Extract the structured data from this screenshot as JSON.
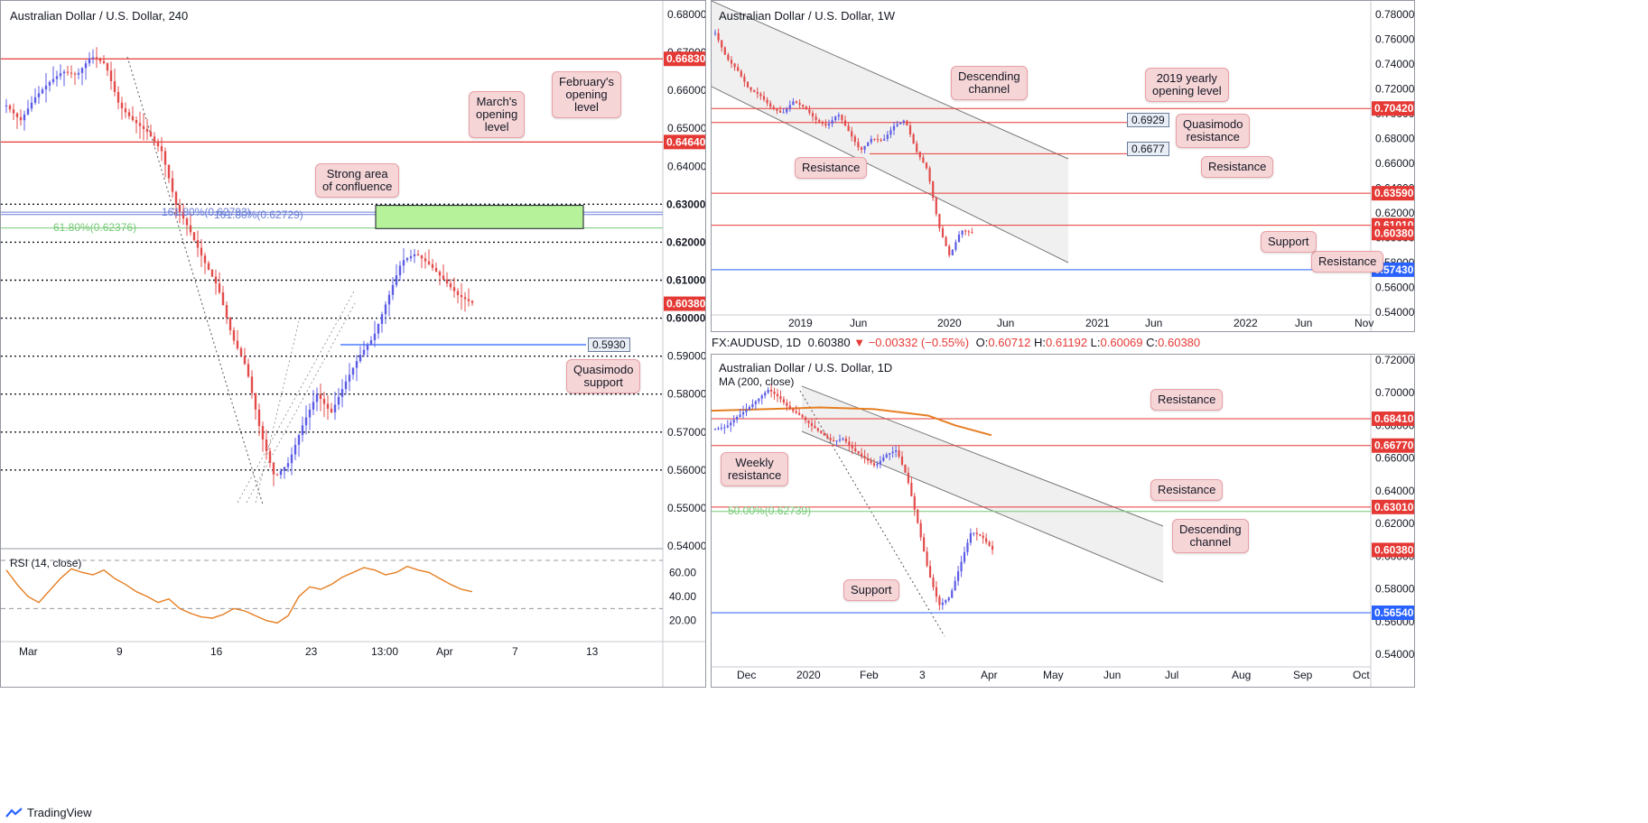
{
  "panels": {
    "h4": {
      "title": "Australian Dollar / U.S. Dollar, 240",
      "price_axis": [
        "0.68000",
        "0.67000",
        "0.66000",
        "0.65000",
        "0.64000",
        "0.63000",
        "0.62000",
        "0.61000",
        "0.60000",
        "0.59000",
        "0.58000",
        "0.57000",
        "0.56000",
        "0.55000",
        "0.54000"
      ],
      "price_tags": [
        {
          "label": "0.66830",
          "color": "#e53935"
        },
        {
          "label": "0.64640",
          "color": "#e53935"
        },
        {
          "label": "0.63000",
          "color": "#ffffff"
        },
        {
          "label": "0.62000",
          "color": "#ffffff"
        },
        {
          "label": "0.61000",
          "color": "#ffffff"
        },
        {
          "label": "0.60380",
          "color": "#e53935"
        },
        {
          "label": "0.60000",
          "color": "#ffffff"
        }
      ],
      "time_axis": [
        "Mar",
        "9",
        "16",
        "23",
        "13:00",
        "Apr",
        "7",
        "13"
      ],
      "fib_labels": {
        "a": "161.80%(0.62793)",
        "b": "161.80%(0.62729)",
        "c": "61.80%(0.62376)"
      },
      "value_box": "0.5930",
      "notes": {
        "feb": "February's\nopening\nlevel",
        "mar": "March's\nopening\nlevel",
        "conf": "Strong area\nof confluence",
        "qm": "Quasimodo\nsupport"
      },
      "rsi": {
        "title": "RSI (14, close)",
        "axis": [
          "60.00",
          "40.00",
          "20.00"
        ]
      }
    },
    "weekly": {
      "title": "Australian Dollar / U.S. Dollar, 1W",
      "price_axis": [
        "0.78000",
        "0.76000",
        "0.74000",
        "0.72000",
        "0.70000",
        "0.68000",
        "0.66000",
        "0.64000",
        "0.62000",
        "0.60000",
        "0.58000",
        "0.56000",
        "0.54000"
      ],
      "price_tags": [
        {
          "label": "0.70420",
          "color": "#e53935"
        },
        {
          "label": "0.63590",
          "color": "#e53935"
        },
        {
          "label": "0.61010",
          "color": "#e53935"
        },
        {
          "label": "0.60380",
          "color": "#e53935"
        },
        {
          "label": "0.57430",
          "color": "#2962ff"
        }
      ],
      "time_axis": [
        "2019",
        "Jun",
        "2020",
        "Jun",
        "2021",
        "Jun",
        "2022",
        "Jun",
        "Nov"
      ],
      "value_boxes": [
        "0.6929",
        "0.6677"
      ],
      "notes": {
        "chan": "Descending\nchannel",
        "yearly": "2019 yearly\nopening level",
        "qm": "Quasimodo\nresistance",
        "res1": "Resistance",
        "res2": "Resistance",
        "res3": "Resistance",
        "sup": "Support"
      }
    },
    "daily": {
      "header": {
        "symbol": "FX:AUDUSD, 1D",
        "last": "0.60380",
        "change": "−0.00332 (−0.55%)",
        "o_label": "O:",
        "o": "0.60712",
        "h_label": "H:",
        "h": "0.61192",
        "l_label": "L:",
        "l": "0.60069",
        "c_label": "C:",
        "c": "0.60380"
      },
      "title": "Australian Dollar / U.S. Dollar, 1D",
      "ma_label": "MA (200, close)",
      "price_axis": [
        "0.72000",
        "0.70000",
        "0.68000",
        "0.66000",
        "0.64000",
        "0.62000",
        "0.60000",
        "0.58000",
        "0.56000",
        "0.54000"
      ],
      "price_tags": [
        {
          "label": "0.68410",
          "color": "#e53935"
        },
        {
          "label": "0.66770",
          "color": "#e53935"
        },
        {
          "label": "0.63010",
          "color": "#e53935"
        },
        {
          "label": "0.60380",
          "color": "#e53935"
        },
        {
          "label": "0.56540",
          "color": "#2962ff"
        }
      ],
      "time_axis": [
        "Dec",
        "2020",
        "Feb",
        "3",
        "Apr",
        "May",
        "Jun",
        "Jul",
        "Aug",
        "Sep",
        "Oct"
      ],
      "fib_label": "50.00%(0.62739)",
      "notes": {
        "res1": "Resistance",
        "res2": "Resistance",
        "weekly": "Weekly\nresistance",
        "chan": "Descending\nchannel",
        "sup": "Support"
      }
    }
  },
  "brand": "TradingView",
  "colors": {
    "bull": "#5b5ce6",
    "bear": "#e34b4b",
    "resistance": "#e53935",
    "support": "#2962ff",
    "fib_green": "#76c976",
    "fib_blue": "#6b7fd7",
    "ma": "#e67e22",
    "rsi": "#e67e22"
  }
}
